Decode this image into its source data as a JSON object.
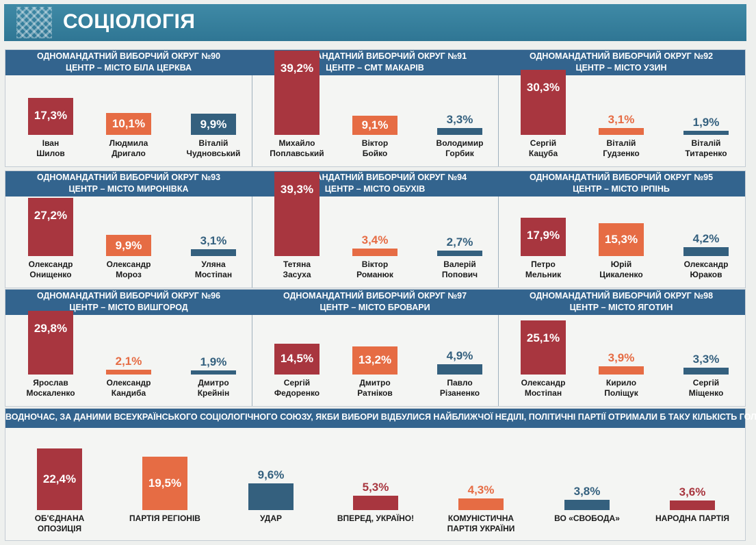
{
  "header": {
    "title": "СОЦІОЛОГІЯ"
  },
  "colors": {
    "red": "#a8363f",
    "orange": "#e66c44",
    "blue": "#34607e",
    "band": "#33648e"
  },
  "chart_data": [
    {
      "type": "bar",
      "title_line1": "ОДНОМАНДАТНИЙ ВИБОРЧИЙ ОКРУГ №90",
      "title_line2": "ЦЕНТР –  МІСТО БІЛА ЦЕРКВА",
      "categories": [
        [
          "Іван",
          "Шилов"
        ],
        [
          "Людмила",
          "Дригало"
        ],
        [
          "Віталій",
          "Чудновський"
        ]
      ],
      "values": [
        17.3,
        10.1,
        9.9
      ],
      "labels": [
        "17,3%",
        "10,1%",
        "9,9%"
      ]
    },
    {
      "type": "bar",
      "title_line1": "ОДНОМАНДАТНИЙ ВИБОРЧИЙ ОКРУГ №91",
      "title_line2": "ЦЕНТР – СМТ  МАКАРІВ",
      "categories": [
        [
          "Михайло",
          "Поплавський"
        ],
        [
          "Віктор",
          "Бойко"
        ],
        [
          "Володимир",
          "Горбик"
        ]
      ],
      "values": [
        39.2,
        9.1,
        3.3
      ],
      "labels": [
        "39,2%",
        "9,1%",
        "3,3%"
      ]
    },
    {
      "type": "bar",
      "title_line1": "ОДНОМАНДАТНИЙ ВИБОРЧИЙ ОКРУГ №92",
      "title_line2": "ЦЕНТР – МІСТО УЗИН",
      "categories": [
        [
          "Сергій",
          "Кацуба"
        ],
        [
          "Віталій",
          "Гудзенко"
        ],
        [
          "Віталій",
          "Титаренко"
        ]
      ],
      "values": [
        30.3,
        3.1,
        1.9
      ],
      "labels": [
        "30,3%",
        "3,1%",
        "1,9%"
      ]
    },
    {
      "type": "bar",
      "title_line1": "ОДНОМАНДАТНИЙ ВИБОРЧИЙ ОКРУГ №93",
      "title_line2": "ЦЕНТР – МІСТО МИРОНІВКА",
      "categories": [
        [
          "Олександр",
          "Онищенко"
        ],
        [
          "Олександр",
          "Мороз"
        ],
        [
          "Уляна",
          "Мостіпан"
        ]
      ],
      "values": [
        27.2,
        9.9,
        3.1
      ],
      "labels": [
        "27,2%",
        "9,9%",
        "3,1%"
      ]
    },
    {
      "type": "bar",
      "title_line1": "ОДНОМАНДАТНИЙ ВИБОРЧИЙ ОКРУГ №94",
      "title_line2": "ЦЕНТР – МІСТО ОБУХІВ",
      "categories": [
        [
          "Тетяна",
          "Засуха"
        ],
        [
          "Віктор",
          "Романюк"
        ],
        [
          "Валерій",
          "Попович"
        ]
      ],
      "values": [
        39.3,
        3.4,
        2.7
      ],
      "labels": [
        "39,3%",
        "3,4%",
        "2,7%"
      ]
    },
    {
      "type": "bar",
      "title_line1": "ОДНОМАНДАТНИЙ ВИБОРЧИЙ ОКРУГ №95",
      "title_line2": "ЦЕНТР – МІСТО ІРПІНЬ",
      "categories": [
        [
          "Петро",
          "Мельник"
        ],
        [
          "Юрій",
          "Цикаленко"
        ],
        [
          "Олександр",
          "Юраков"
        ]
      ],
      "values": [
        17.9,
        15.3,
        4.2
      ],
      "labels": [
        "17,9%",
        "15,3%",
        "4,2%"
      ]
    },
    {
      "type": "bar",
      "title_line1": "ОДНОМАНДАТНИЙ ВИБОРЧИЙ ОКРУГ №96",
      "title_line2": "ЦЕНТР – МІСТО ВИШГОРОД",
      "categories": [
        [
          "Ярослав",
          "Москаленко"
        ],
        [
          "Олександр",
          "Кандиба"
        ],
        [
          "Дмитро",
          "Крейнін"
        ]
      ],
      "values": [
        29.8,
        2.1,
        1.9
      ],
      "labels": [
        "29,8%",
        "2,1%",
        "1,9%"
      ]
    },
    {
      "type": "bar",
      "title_line1": "ОДНОМАНДАТНИЙ ВИБОРЧИЙ ОКРУГ №97",
      "title_line2": "ЦЕНТР – МІСТО БРОВАРИ",
      "categories": [
        [
          "Сергій",
          "Федоренко"
        ],
        [
          "Дмитро",
          "Ратніков"
        ],
        [
          "Павло",
          "Різаненко"
        ]
      ],
      "values": [
        14.5,
        13.2,
        4.9
      ],
      "labels": [
        "14,5%",
        "13,2%",
        "4,9%"
      ]
    },
    {
      "type": "bar",
      "title_line1": "ОДНОМАНДАТНИЙ ВИБОРЧИЙ ОКРУГ №98",
      "title_line2": "ЦЕНТР – МІСТО ЯГОТИН",
      "categories": [
        [
          "Олександр",
          "Мостіпан"
        ],
        [
          "Кирило",
          "Поліщук"
        ],
        [
          "Сергій",
          "Міщенко"
        ]
      ],
      "values": [
        25.1,
        3.9,
        3.3
      ],
      "labels": [
        "25,1%",
        "3,9%",
        "3,3%"
      ]
    },
    {
      "type": "bar",
      "title": "ВОДНОЧАС, ЗА ДАНИМИ ВСЕУКРАЇНСЬКОГО СОЦІОЛОГІЧНОГО СОЮЗУ, ЯКБИ ВИБОРИ ВІДБУЛИСЯ НАЙБЛИЖЧОЇ НЕДІЛІ, ПОЛІТИЧНІ ПАРТІЇ ОТРИМАЛИ Б ТАКУ КІЛЬКІСТЬ ГОЛОСІВ:",
      "categories": [
        [
          "ОБ'ЄДНАНА",
          "ОПОЗИЦІЯ"
        ],
        [
          "ПАРТІЯ РЕГІОНІВ"
        ],
        [
          "УДАР"
        ],
        [
          "ВПЕРЕД, УКРАЇНО!"
        ],
        [
          "КОМУНІСТИЧНА",
          "ПАРТІЯ УКРАЇНИ"
        ],
        [
          "ВО «СВОБОДА»"
        ],
        [
          "НАРОДНА ПАРТІЯ"
        ]
      ],
      "values": [
        22.4,
        19.5,
        9.6,
        5.3,
        4.3,
        3.8,
        3.6
      ],
      "labels": [
        "22,4%",
        "19,5%",
        "9,6%",
        "5,3%",
        "4,3%",
        "3,8%",
        "3,6%"
      ]
    }
  ]
}
